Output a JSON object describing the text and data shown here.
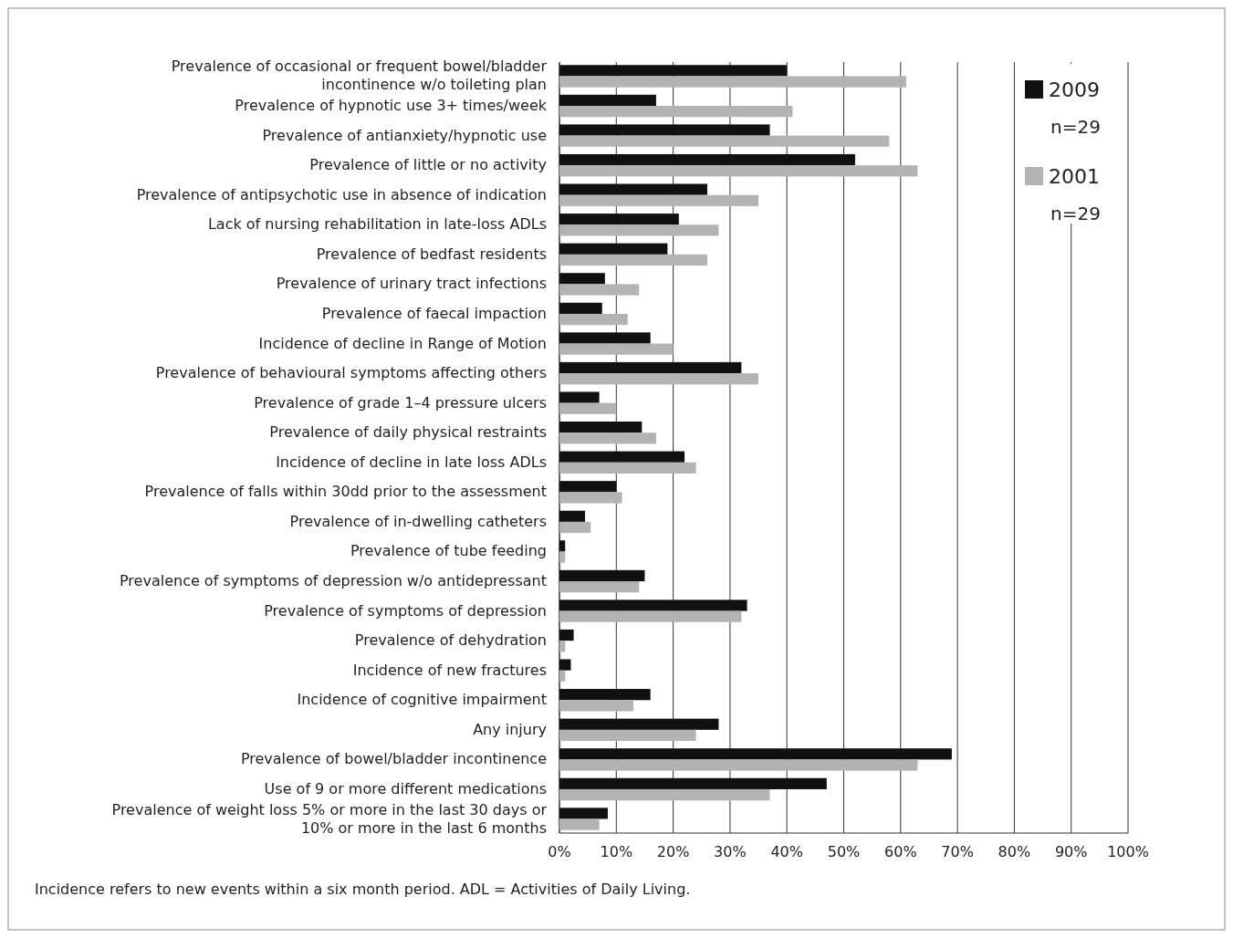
{
  "chart_data": {
    "type": "bar",
    "orientation": "horizontal",
    "categories": [
      "Prevalence of occasional or frequent bowel/bladder incontinence w/o toileting plan",
      "Prevalence of hypnotic use 3+ times/week",
      "Prevalence of antianxiety/hypnotic use",
      "Prevalence of little or no activity",
      "Prevalence of antipsychotic use in absence of indication",
      "Lack of nursing rehabilitation in late-loss ADLs",
      "Prevalence of bedfast residents",
      "Prevalence of urinary tract infections",
      "Prevalence of faecal impaction",
      "Incidence of decline in Range of Motion",
      "Prevalence of behavioural symptoms affecting others",
      "Prevalence of grade 1–4 pressure ulcers",
      "Prevalence of daily physical restraints",
      "Incidence of decline in late loss ADLs",
      "Prevalence of falls within 30dd prior to the assessment",
      "Prevalence of in-dwelling catheters",
      "Prevalence of tube feeding",
      "Prevalence of symptoms of depression w/o antidepressant",
      "Prevalence of symptoms of depression",
      "Prevalence of dehydration",
      "Incidence of new fractures",
      "Incidence of cognitive impairment",
      "Any injury",
      "Prevalence of bowel/bladder incontinence",
      "Use of 9 or more different medications",
      "Prevalence of weight loss 5% or more in the last 30 days or 10% or more in the last 6 months"
    ],
    "series": [
      {
        "name": "2009",
        "color": "#111111",
        "values": [
          40,
          17,
          37,
          52,
          26,
          21,
          19,
          8,
          7.5,
          16,
          32,
          7,
          14.5,
          22,
          10,
          4.5,
          1,
          15,
          33,
          2.5,
          2,
          16,
          28,
          69,
          47,
          8.5
        ]
      },
      {
        "name": "2001",
        "color": "#b3b3b3",
        "values": [
          61,
          41,
          58,
          63,
          35,
          28,
          26,
          14,
          12,
          20,
          35,
          10,
          17,
          24,
          11,
          5.5,
          1,
          14,
          32,
          1,
          1,
          13,
          24,
          63,
          37,
          7
        ]
      }
    ],
    "xlim": [
      0,
      100
    ],
    "xticks": [
      {
        "value": 0,
        "label": "0%"
      },
      {
        "value": 10,
        "label": "10%"
      },
      {
        "value": 20,
        "label": "20%"
      },
      {
        "value": 30,
        "label": "30%"
      },
      {
        "value": 40,
        "label": "40%"
      },
      {
        "value": 50,
        "label": "50%"
      },
      {
        "value": 60,
        "label": "60%"
      },
      {
        "value": 70,
        "label": "70%"
      },
      {
        "value": 80,
        "label": "80%"
      },
      {
        "value": 90,
        "label": "90%"
      },
      {
        "value": 100,
        "label": "100%"
      }
    ],
    "grid": "x",
    "legend": "top right",
    "annotations": [
      "n=29",
      "n=29",
      "Incidence refers to new events within a six month period. ADL = Activities of Daily Living."
    ]
  }
}
